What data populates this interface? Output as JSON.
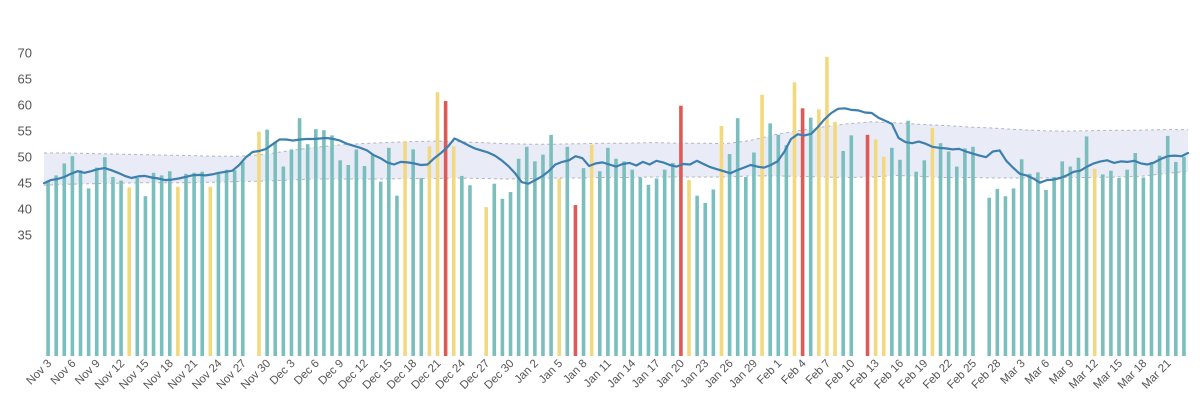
{
  "chart_data": {
    "type": "bar",
    "title": "",
    "xlabel": "",
    "ylabel": "",
    "ylim": [
      30,
      72
    ],
    "yticks": [
      35,
      40,
      45,
      50,
      55,
      60,
      65,
      70
    ],
    "grid": false,
    "legend": "none",
    "colors": {
      "teal": "#7abfbd",
      "yellow": "#f2d87e",
      "red": "#de5a57",
      "line": "#3d7fae",
      "band_fill": "#e9ecf7",
      "band_edge": "#b3b3c4"
    },
    "x_tick_labels": [
      "Nov 3",
      "Nov 6",
      "Nov 9",
      "Nov 12",
      "Nov 15",
      "Nov 18",
      "Nov 21",
      "Nov 24",
      "Nov 27",
      "Nov 30",
      "Dec 3",
      "Dec 6",
      "Dec 9",
      "Dec 12",
      "Dec 15",
      "Dec 18",
      "Dec 21",
      "Dec 24",
      "Dec 27",
      "Dec 30",
      "Jan 2",
      "Jan 5",
      "Jan 8",
      "Jan 11",
      "Jan 14",
      "Jan 17",
      "Jan 20",
      "Jan 23",
      "Jan 26",
      "Jan 29",
      "Feb 1",
      "Feb 4",
      "Feb 7",
      "Feb 10",
      "Feb 13",
      "Feb 16",
      "Feb 19",
      "Feb 22",
      "Feb 25",
      "Feb 28",
      "Mar 3",
      "Mar 6",
      "Mar 9",
      "Mar 12",
      "Mar 15",
      "Mar 18",
      "Mar 21"
    ],
    "start_date": "2019-11-03",
    "values": [
      45.5,
      46.5,
      48.8,
      50.2,
      47.5,
      44.0,
      48.0,
      50.0,
      46.2,
      45.5,
      44.2,
      46.0,
      42.5,
      47.0,
      46.5,
      47.3,
      44.3,
      46.8,
      47.0,
      47.2,
      44.3,
      46.8,
      47.6,
      47.5,
      49.1,
      null,
      54.9,
      55.3,
      53.0,
      48.2,
      51.5,
      57.5,
      52.5,
      55.4,
      55.2,
      54.2,
      49.4,
      48.5,
      51.5,
      48.3,
      50.5,
      45.3,
      51.8,
      42.6,
      53.1,
      51.5,
      46.0,
      52.1,
      62.5,
      60.8,
      52.1,
      46.4,
      44.6,
      null,
      40.4,
      44.9,
      42.0,
      43.3,
      49.7,
      52.0,
      49.2,
      50.5,
      54.3,
      45.9,
      52.0,
      40.8,
      47.9,
      52.4,
      47.3,
      51.8,
      49.7,
      49.2,
      47.6,
      46.1,
      44.7,
      45.9,
      47.6,
      48.9,
      59.9,
      45.6,
      42.6,
      41.2,
      43.8,
      56.0,
      50.6,
      57.5,
      46.2,
      50.9,
      62.0,
      56.5,
      54.3,
      52.3,
      64.4,
      59.4,
      57.6,
      59.2,
      69.3,
      56.8,
      51.2,
      54.2,
      null,
      54.3,
      53.4,
      50.1,
      51.8,
      49.5,
      57.0,
      47.2,
      49.4,
      55.6,
      52.7,
      51.1,
      48.2,
      51.7,
      52.0,
      null,
      42.2,
      43.9,
      42.5,
      44.0,
      49.6,
      46.8,
      47.1,
      43.7,
      46.2,
      49.2,
      48.2,
      49.9,
      54.0,
      47.8,
      46.7,
      47.4,
      46.0,
      47.6,
      50.8,
      46.1,
      49.1,
      50.3,
      54.1,
      49.1,
      50.1
    ],
    "value_colors": [
      "teal",
      "teal",
      "teal",
      "teal",
      "teal",
      "teal",
      "teal",
      "teal",
      "teal",
      "teal",
      "yellow",
      "teal",
      "teal",
      "teal",
      "teal",
      "teal",
      "yellow",
      "teal",
      "teal",
      "teal",
      "yellow",
      "teal",
      "teal",
      "teal",
      "teal",
      "teal",
      "yellow",
      "teal",
      "teal",
      "teal",
      "teal",
      "teal",
      "teal",
      "teal",
      "teal",
      "teal",
      "teal",
      "teal",
      "teal",
      "teal",
      "teal",
      "teal",
      "teal",
      "teal",
      "yellow",
      "teal",
      "teal",
      "yellow",
      "yellow",
      "red",
      "yellow",
      "teal",
      "teal",
      "teal",
      "yellow",
      "teal",
      "teal",
      "teal",
      "teal",
      "teal",
      "teal",
      "teal",
      "teal",
      "yellow",
      "teal",
      "red",
      "teal",
      "yellow",
      "teal",
      "teal",
      "teal",
      "teal",
      "teal",
      "teal",
      "teal",
      "teal",
      "teal",
      "teal",
      "red",
      "yellow",
      "teal",
      "teal",
      "teal",
      "yellow",
      "teal",
      "teal",
      "teal",
      "teal",
      "yellow",
      "teal",
      "teal",
      "teal",
      "yellow",
      "red",
      "teal",
      "yellow",
      "yellow",
      "yellow",
      "teal",
      "teal",
      "teal",
      "red",
      "yellow",
      "yellow",
      "teal",
      "teal",
      "teal",
      "teal",
      "teal",
      "yellow",
      "teal",
      "teal",
      "teal",
      "teal",
      "teal",
      "teal",
      "teal",
      "teal",
      "teal",
      "teal",
      "teal",
      "teal",
      "teal",
      "teal",
      "teal",
      "teal",
      "teal",
      "teal",
      "teal",
      "yellow",
      "teal",
      "teal",
      "teal",
      "teal",
      "teal",
      "teal",
      "teal",
      "teal",
      "teal",
      "teal",
      "teal"
    ],
    "moving_average": [
      45.0,
      45.6,
      45.8,
      46.2,
      46.8,
      47.3,
      47.0,
      47.3,
      47.7,
      47.9,
      47.5,
      47.0,
      46.4,
      46.0,
      46.3,
      46.4,
      46.1,
      45.9,
      45.6,
      45.7,
      45.9,
      46.2,
      46.5,
      46.6,
      46.5,
      46.7,
      47.0,
      47.2,
      47.4,
      48.5,
      50.0,
      51.0,
      51.2,
      51.6,
      52.5,
      53.4,
      53.4,
      53.2,
      53.4,
      53.5,
      53.5,
      53.6,
      53.7,
      53.5,
      53.2,
      52.6,
      52.2,
      51.8,
      51.3,
      50.4,
      49.8,
      49.0,
      48.6,
      49.1,
      49.0,
      48.8,
      48.5,
      48.6,
      49.8,
      50.8,
      52.0,
      53.6,
      53.0,
      52.3,
      51.7,
      51.3,
      50.9,
      50.3,
      49.4,
      48.3,
      46.9,
      45.2,
      44.9,
      45.6,
      46.3,
      47.3,
      48.6,
      49.1,
      49.4,
      50.2,
      49.8,
      48.3,
      48.8,
      49.0,
      48.6,
      48.2,
      48.7,
      48.9,
      48.4,
      49.1,
      48.6,
      49.3,
      49.0,
      48.5,
      48.2,
      48.7,
      48.6,
      49.3,
      48.7,
      48.1,
      47.7,
      47.3,
      46.9,
      47.5,
      48.0,
      48.5,
      48.2,
      48.0,
      48.5,
      49.2,
      51.0,
      53.5,
      54.4,
      54.2,
      54.5,
      55.8,
      57.3,
      58.5,
      59.3,
      59.4,
      59.1,
      59.0,
      58.6,
      58.5,
      57.6,
      57.0,
      56.4,
      53.7,
      52.9,
      52.7,
      53.0,
      52.6,
      52.0,
      51.8,
      51.7,
      51.5,
      51.6,
      51.1,
      50.7,
      50.3,
      50.0,
      51.1,
      51.3,
      49.3,
      48.0,
      46.8,
      46.5,
      45.9,
      45.1,
      45.6,
      45.7,
      46.0,
      46.5,
      47.2,
      47.4,
      48.2,
      48.8,
      49.2,
      49.4,
      48.9,
      49.2,
      49.1,
      49.3,
      48.8,
      48.6,
      49.0,
      49.7,
      50.2,
      50.3,
      50.2,
      50.8
    ],
    "band_upper": [
      50.8,
      50.8,
      50.7,
      50.6,
      50.5,
      50.4,
      50.3,
      50.2,
      50.2,
      50.5,
      51.2,
      51.8,
      52.3,
      52.6,
      52.8,
      53.0,
      53.1,
      53.0,
      52.8,
      52.6,
      52.5,
      52.5,
      52.6,
      52.7,
      52.7,
      52.8,
      52.7,
      52.7,
      52.6,
      53.2,
      54.3,
      55.1,
      55.8,
      56.4,
      56.8,
      56.6,
      56.3,
      56.1,
      55.8,
      55.6,
      55.3,
      55.1,
      55.0,
      55.1,
      55.2,
      55.2,
      55.3,
      55.3
    ],
    "band_lower": [
      44.6,
      44.8,
      44.9,
      45.0,
      45.1,
      45.1,
      45.1,
      45.2,
      45.3,
      45.4,
      45.6,
      45.8,
      45.8,
      45.8,
      45.8,
      45.9,
      45.9,
      46.0,
      45.9,
      45.8,
      45.9,
      46.0,
      46.0,
      46.1,
      46.1,
      46.2,
      46.2,
      46.2,
      46.2,
      46.4,
      46.4,
      46.3,
      46.2,
      46.1,
      46.2,
      46.5,
      46.3,
      46.1,
      46.1,
      46.0,
      46.0,
      46.0,
      46.1,
      46.1,
      46.2,
      46.3,
      46.8,
      47.3
    ]
  }
}
